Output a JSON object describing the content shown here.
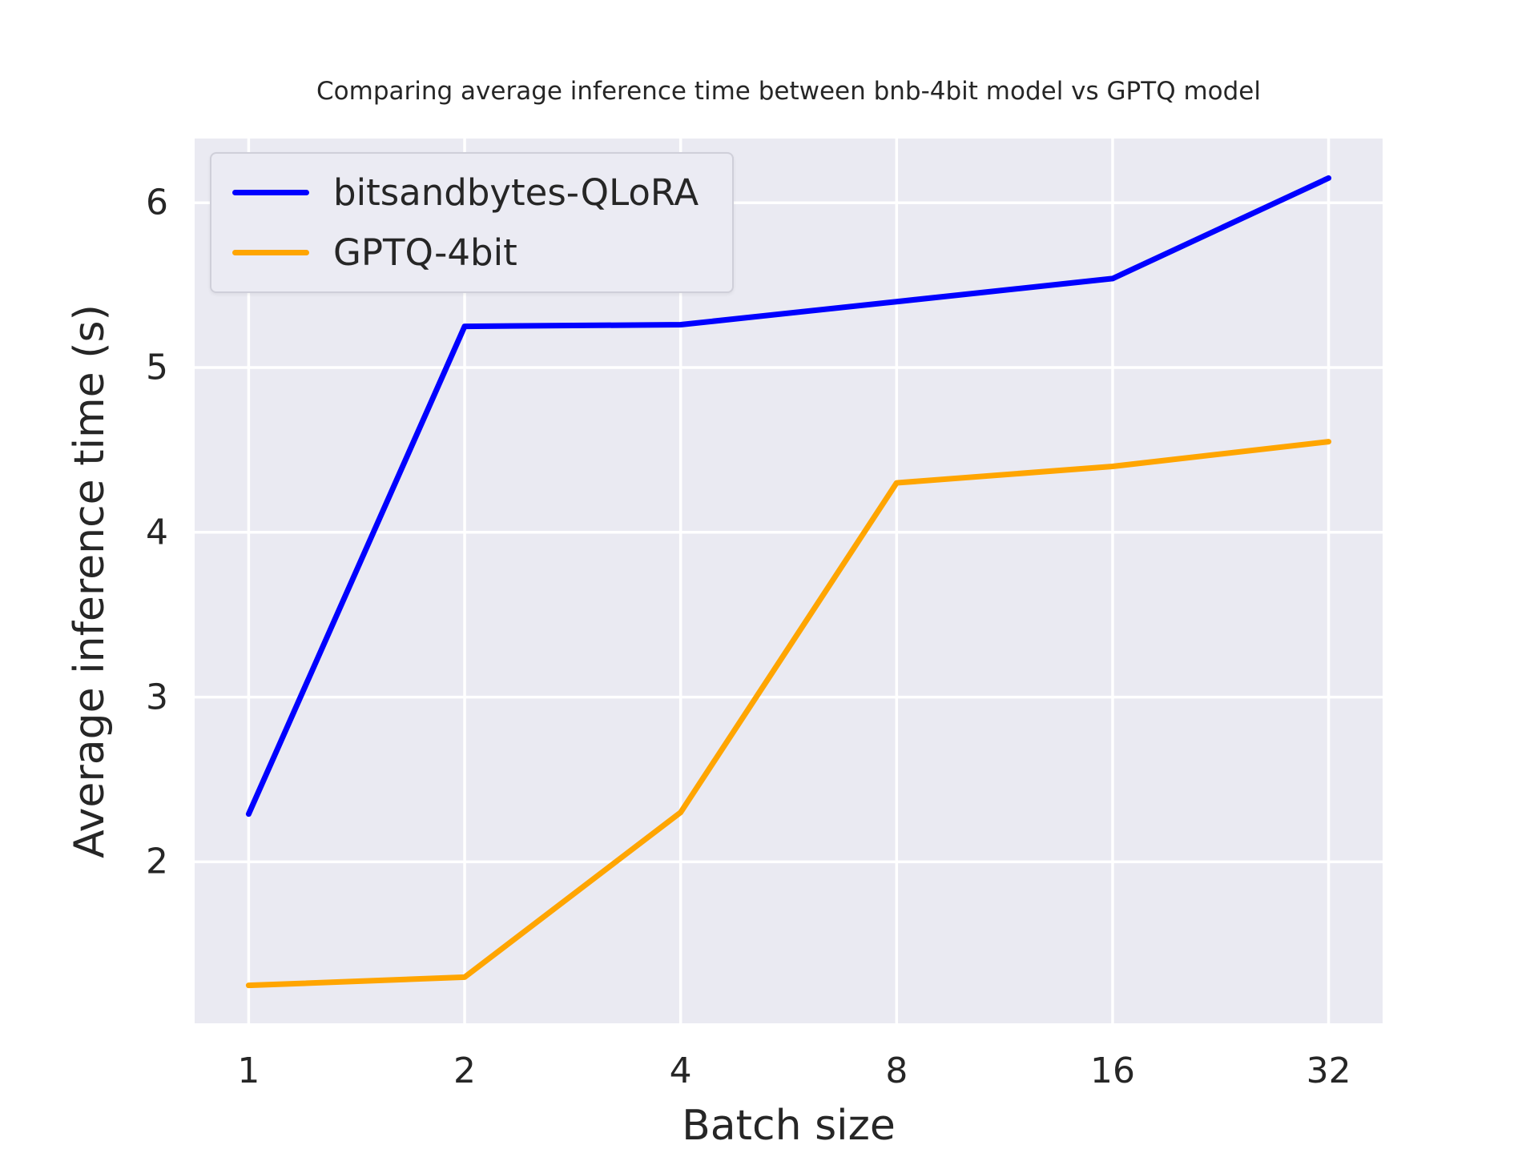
{
  "chart_data": {
    "type": "line",
    "title": "Comparing average inference time between bnb-4bit model vs GPTQ model",
    "xlabel": "Batch size",
    "ylabel": "Average inference time (s)",
    "x": [
      1,
      2,
      4,
      8,
      16,
      32
    ],
    "x_scale": "log2",
    "x_tick_labels": [
      "1",
      "2",
      "4",
      "8",
      "16",
      "32"
    ],
    "series": [
      {
        "name": "bitsandbytes-QLoRA",
        "color": "#0000ff",
        "values": [
          2.29,
          5.25,
          5.26,
          5.4,
          5.54,
          6.15
        ]
      },
      {
        "name": "GPTQ-4bit",
        "color": "#ffa500",
        "values": [
          1.25,
          1.3,
          2.3,
          4.3,
          4.4,
          4.55
        ]
      }
    ],
    "yticks": [
      2,
      3,
      4,
      5,
      6
    ],
    "ylim": [
      1.02,
      6.39
    ],
    "xlim_log2": [
      -0.25,
      5.25
    ],
    "grid": true,
    "legend_position": "upper left",
    "plot_background": "#eaeaf2",
    "gridline_color": "#ffffff",
    "text_color": "#262626"
  }
}
